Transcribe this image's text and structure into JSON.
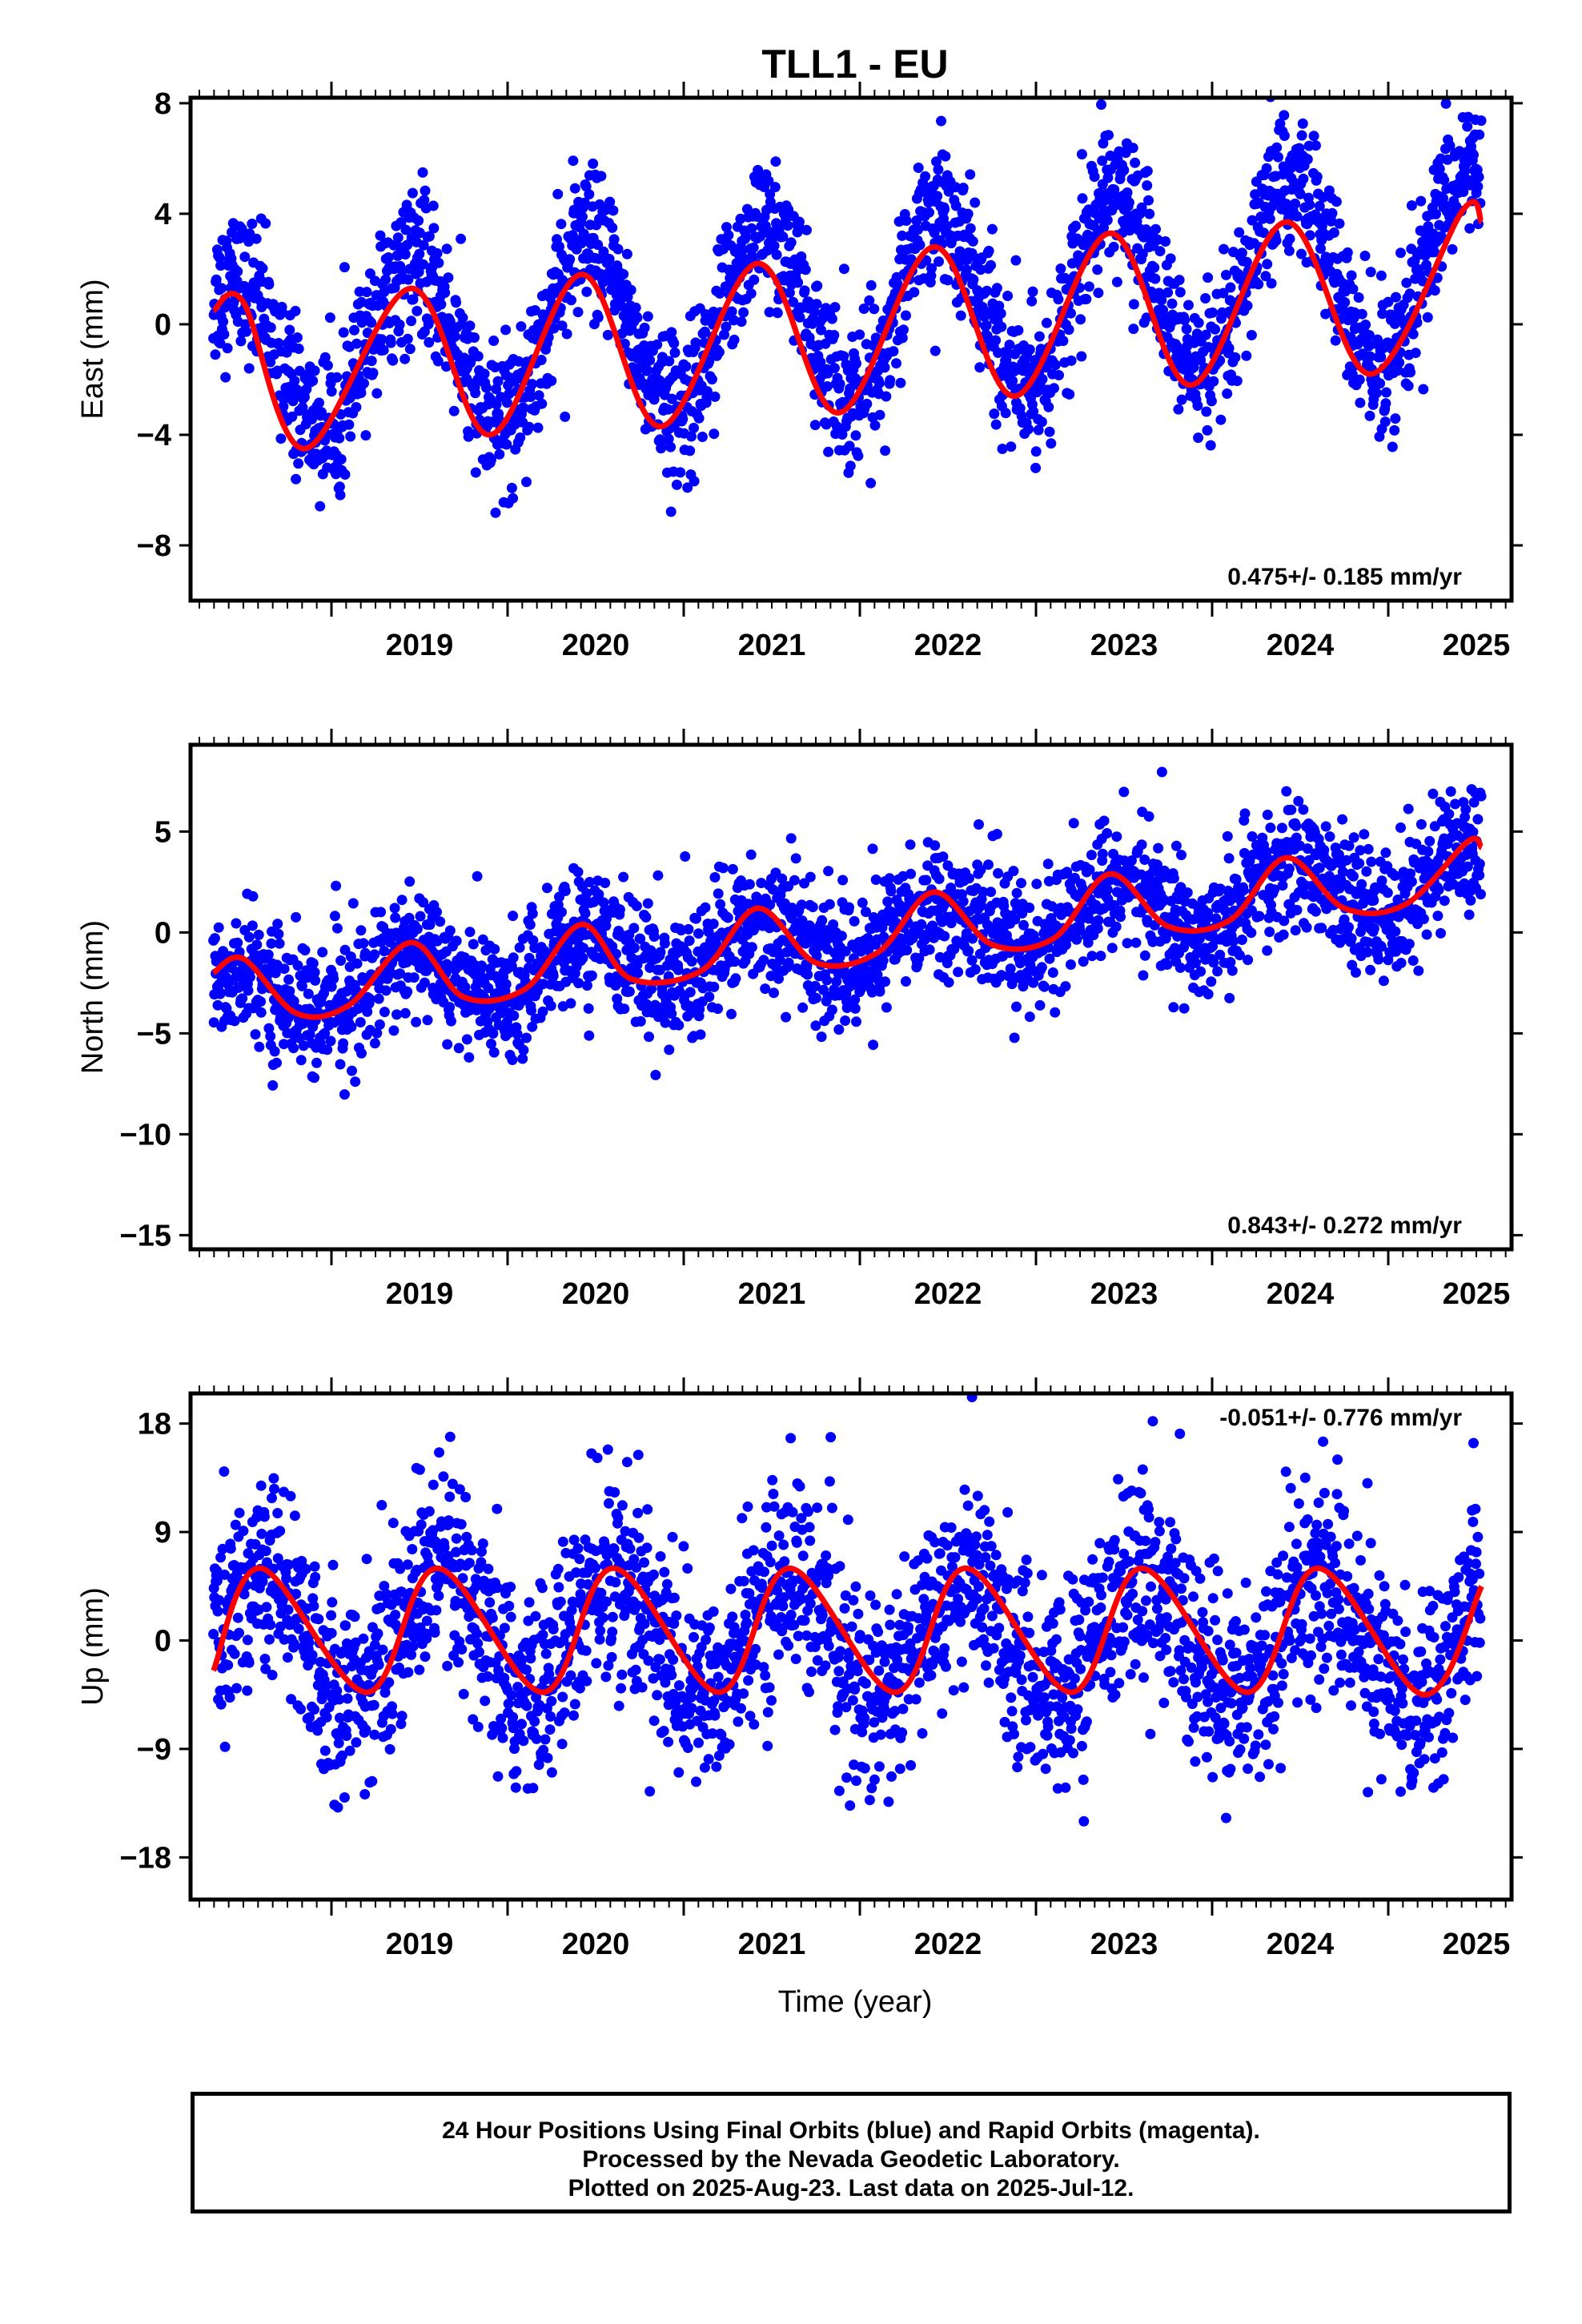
{
  "title": "TLL1 - EU",
  "x_axis_label": "Time (year)",
  "footer": [
    "24 Hour Positions Using Final Orbits (blue) and Rapid Orbits (magenta).",
    "Processed by the Nevada Geodetic Laboratory.",
    "Plotted on 2025-Aug-23. Last data on 2025-Jul-12."
  ],
  "colors": {
    "points": "#0000ff",
    "fit": "#ff0000",
    "axis": "#000000"
  },
  "chart_data": [
    {
      "type": "scatter",
      "ylabel": "East (mm)",
      "rate_text": "0.475+/- 0.185 mm/yr",
      "rate_position": "bottom-right",
      "xlim": [
        2018.2,
        2025.7
      ],
      "ylim": [
        -10,
        8.2
      ],
      "yticks": [
        8,
        4,
        0,
        -4,
        -8
      ],
      "xticks": [
        2019,
        2020,
        2021,
        2022,
        2023,
        2024,
        2025
      ],
      "series_model": {
        "start": 2018.33,
        "end": 2025.53,
        "offset": -0.9,
        "trend_mm_per_yr": 0.475,
        "amplitude": 2.8,
        "amplitude_growth": 0.1,
        "peak_phase": 0.45,
        "noise_sd": 1.3
      },
      "fit_points": [
        [
          2018.33,
          0.5
        ],
        [
          2018.5,
          0.8
        ],
        [
          2018.85,
          -4.5
        ],
        [
          2019.45,
          1.3
        ],
        [
          2019.9,
          -4.0
        ],
        [
          2020.42,
          1.8
        ],
        [
          2020.87,
          -3.7
        ],
        [
          2021.42,
          2.2
        ],
        [
          2021.88,
          -3.2
        ],
        [
          2022.42,
          2.8
        ],
        [
          2022.88,
          -2.6
        ],
        [
          2023.42,
          3.3
        ],
        [
          2023.88,
          -2.2
        ],
        [
          2024.42,
          3.7
        ],
        [
          2024.9,
          -1.8
        ],
        [
          2025.42,
          4.1
        ],
        [
          2025.53,
          3.7
        ]
      ]
    },
    {
      "type": "scatter",
      "ylabel": "North (mm)",
      "rate_text": "0.843+/- 0.272 mm/yr",
      "rate_position": "bottom-right",
      "xlim": [
        2018.2,
        2025.7
      ],
      "ylim": [
        -15.7,
        9.3
      ],
      "yticks": [
        5,
        0,
        -5,
        -10,
        -15
      ],
      "xticks": [
        2019,
        2020,
        2021,
        2022,
        2023,
        2024,
        2025
      ],
      "series_model": {
        "start": 2018.33,
        "end": 2025.53,
        "offset": -3.3,
        "trend_mm_per_yr": 0.843,
        "amplitude": 1.2,
        "amplitude_growth": 0.05,
        "peak_phase": 0.45,
        "noise_sd": 1.6
      },
      "fit_points": [
        [
          2018.33,
          -2.0
        ],
        [
          2018.5,
          -1.3
        ],
        [
          2018.8,
          -4.0
        ],
        [
          2019.1,
          -3.6
        ],
        [
          2019.45,
          -0.5
        ],
        [
          2019.75,
          -3.2
        ],
        [
          2020.1,
          -2.8
        ],
        [
          2020.42,
          0.4
        ],
        [
          2020.7,
          -2.3
        ],
        [
          2021.1,
          -1.9
        ],
        [
          2021.42,
          1.2
        ],
        [
          2021.75,
          -1.5
        ],
        [
          2022.1,
          -1.0
        ],
        [
          2022.42,
          2.0
        ],
        [
          2022.75,
          -0.6
        ],
        [
          2023.1,
          -0.3
        ],
        [
          2023.42,
          2.9
        ],
        [
          2023.75,
          0.3
        ],
        [
          2024.1,
          0.6
        ],
        [
          2024.42,
          3.7
        ],
        [
          2024.75,
          1.2
        ],
        [
          2025.1,
          1.4
        ],
        [
          2025.45,
          4.5
        ],
        [
          2025.53,
          4.2
        ]
      ]
    },
    {
      "type": "scatter",
      "ylabel": "Up (mm)",
      "rate_text": "-0.051+/- 0.776 mm/yr",
      "rate_position": "top-right",
      "xlim": [
        2018.2,
        2025.7
      ],
      "ylim": [
        -21.5,
        20.5
      ],
      "yticks": [
        18,
        9,
        0,
        -9,
        -18
      ],
      "xticks": [
        2019,
        2020,
        2021,
        2022,
        2023,
        2024,
        2025
      ],
      "series_model": {
        "start": 2018.33,
        "end": 2025.53,
        "offset": 0.5,
        "trend_mm_per_yr": -0.051,
        "amplitude": 5.0,
        "amplitude_growth": 0.0,
        "peak_phase": 0.6,
        "noise_sd": 4.2
      },
      "fit_points": [
        [
          2018.33,
          -2.5
        ],
        [
          2018.6,
          6.0
        ],
        [
          2019.2,
          -4.3
        ],
        [
          2019.6,
          6.0
        ],
        [
          2020.2,
          -4.3
        ],
        [
          2020.6,
          6.0
        ],
        [
          2021.2,
          -4.3
        ],
        [
          2021.6,
          6.0
        ],
        [
          2022.2,
          -4.3
        ],
        [
          2022.6,
          6.0
        ],
        [
          2023.2,
          -4.3
        ],
        [
          2023.6,
          6.0
        ],
        [
          2024.2,
          -4.3
        ],
        [
          2024.6,
          6.0
        ],
        [
          2025.2,
          -4.5
        ],
        [
          2025.53,
          4.5
        ]
      ]
    }
  ]
}
